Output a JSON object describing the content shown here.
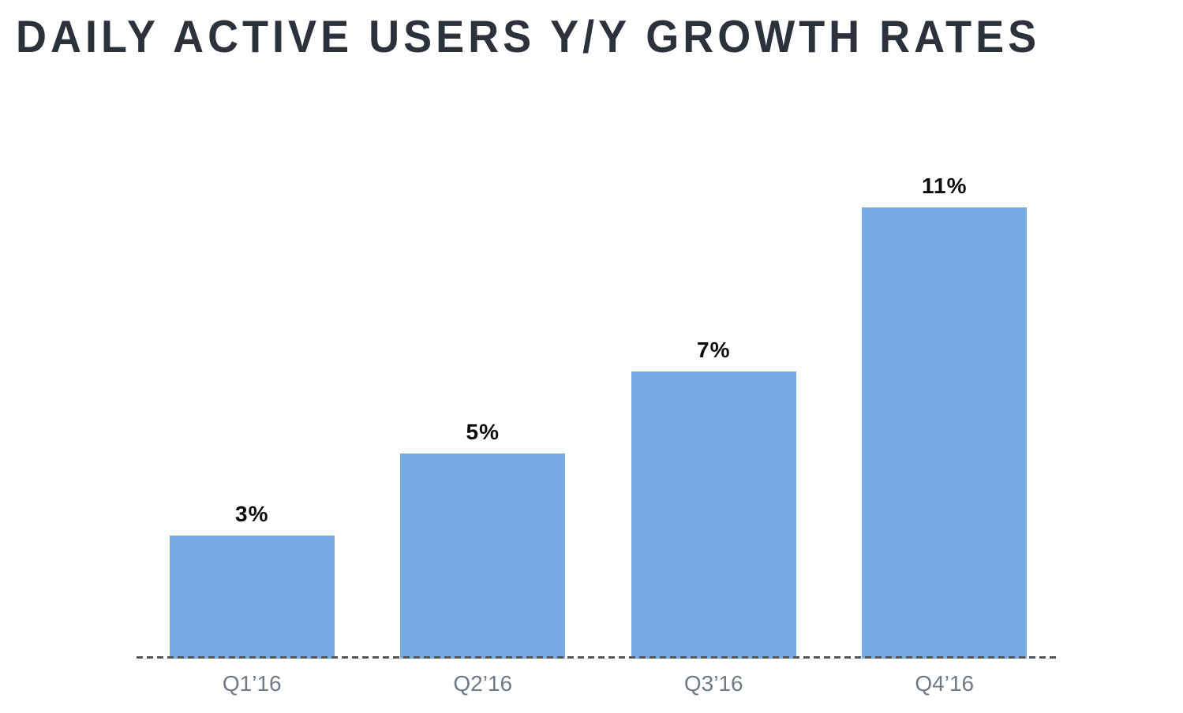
{
  "chart_data": {
    "type": "bar",
    "title": "DAILY ACTIVE USERS Y/Y GROWTH RATES",
    "categories": [
      "Q1’16",
      "Q2’16",
      "Q3’16",
      "Q4’16"
    ],
    "values": [
      3,
      5,
      7,
      11
    ],
    "value_labels": [
      "3%",
      "5%",
      "7%",
      "11%"
    ],
    "unit": "percent",
    "xlabel": "",
    "ylabel": "",
    "ylim": [
      0,
      14.8
    ],
    "grid": false,
    "legend": false,
    "y_axis_visible": false,
    "x_axis_line_style": "dashed",
    "colors": {
      "bar": "#75aae4",
      "axis_line": "#54585c",
      "title": "#2c323c",
      "value_label": "#0c0c0c",
      "category_label": "#6e7a87",
      "background": "#ffffff"
    }
  }
}
